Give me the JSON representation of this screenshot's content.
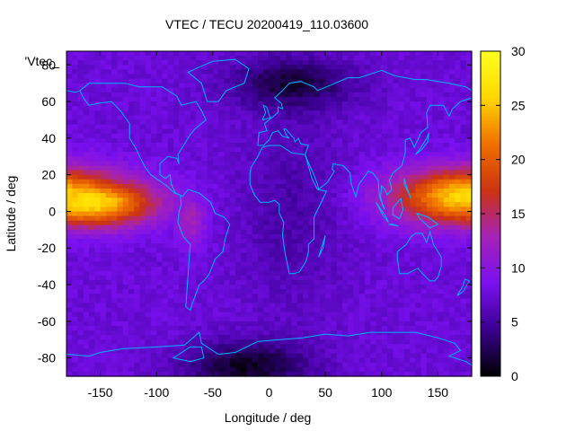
{
  "chart_data": {
    "type": "heatmap",
    "title": "VTEC / TECU 20200419_110.03600",
    "xlabel": "Longitude / deg",
    "ylabel": "Latitude / deg",
    "legend_label": "'Vtec_",
    "xlim": [
      -180,
      180
    ],
    "ylim": [
      -90,
      87.5
    ],
    "x_ticks": [
      -150,
      -100,
      -50,
      0,
      50,
      100,
      150
    ],
    "y_ticks": [
      -80,
      -60,
      -40,
      -20,
      0,
      20,
      40,
      60,
      80
    ],
    "colorbar": {
      "range": [
        0,
        30
      ],
      "ticks": [
        0,
        5,
        10,
        15,
        20,
        25,
        30
      ],
      "palette": [
        "#000000",
        "#3a0090",
        "#7a10f0",
        "#a422b8",
        "#cc3311",
        "#f07000",
        "#ffd800",
        "#ffff20"
      ]
    },
    "grid_step_deg": {
      "lon": 5,
      "lat": 2.5
    },
    "features": [
      {
        "kind": "equatorial_crest",
        "lon_center": -160,
        "lat_center": 5,
        "peak_tecu": 27,
        "lon_halfwidth": 55,
        "lat_halfwidth": 14
      },
      {
        "kind": "equatorial_crest",
        "lon_center": 175,
        "lat_center": 8,
        "peak_tecu": 26,
        "lon_halfwidth": 60,
        "lat_halfwidth": 16
      },
      {
        "kind": "south_american_bulge",
        "lon_center": -70,
        "lat_center": -5,
        "peak_tecu": 13
      },
      {
        "kind": "background_level",
        "tecu": 7.5
      },
      {
        "kind": "polar_low",
        "lon_center": 20,
        "lat_center": 70,
        "min_tecu": 2
      },
      {
        "kind": "polar_low",
        "lon_center": -20,
        "lat_center": -85,
        "min_tecu": 1
      }
    ],
    "overlay": "coastlines",
    "grid": false
  }
}
